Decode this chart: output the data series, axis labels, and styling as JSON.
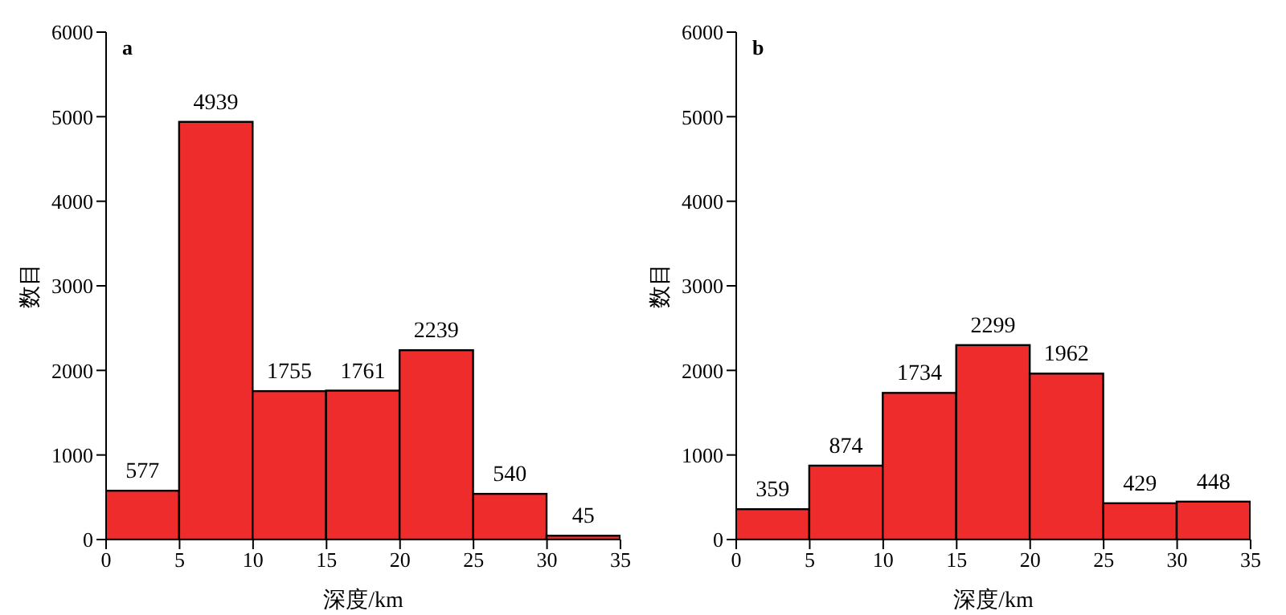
{
  "chart_data": [
    {
      "type": "histogram",
      "title": "a",
      "xlabel": "深度/km",
      "ylabel": "数目",
      "bins": [
        0,
        5,
        10,
        15,
        20,
        25,
        30,
        35
      ],
      "values": [
        577,
        4939,
        1755,
        1761,
        2239,
        540,
        45
      ],
      "color": "#ee2c2c",
      "xlim": [
        0,
        35
      ],
      "xticks": [
        0,
        5,
        10,
        15,
        20,
        25,
        30,
        35
      ],
      "ylim": [
        0,
        6000
      ],
      "yticks": [
        0,
        1000,
        2000,
        3000,
        4000,
        5000,
        6000
      ],
      "data_labels": true
    },
    {
      "type": "histogram",
      "title": "b",
      "xlabel": "深度/km",
      "ylabel": "数目",
      "bins": [
        0,
        5,
        10,
        15,
        20,
        25,
        30,
        35
      ],
      "values": [
        359,
        874,
        1734,
        2299,
        1962,
        429,
        448
      ],
      "color": "#ee2c2c",
      "xlim": [
        0,
        35
      ],
      "xticks": [
        0,
        5,
        10,
        15,
        20,
        25,
        30,
        35
      ],
      "ylim": [
        0,
        6000
      ],
      "yticks": [
        0,
        1000,
        2000,
        3000,
        4000,
        5000,
        6000
      ],
      "data_labels": true
    }
  ]
}
